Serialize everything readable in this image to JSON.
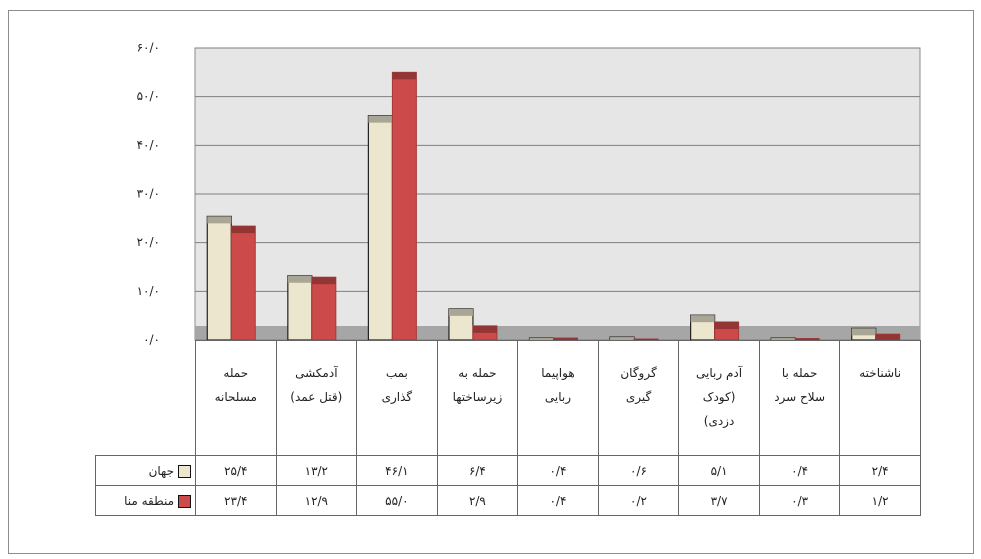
{
  "chart_data": {
    "type": "bar",
    "categories": [
      "حمله\nمسلحانه",
      "آدمکشی\n(قتل عمد)",
      "بمب\nگذاری",
      "حمله به\nزیرساختها",
      "هواپیما\nربایی",
      "گروگان\nگیری",
      "آدم ربایی\n(کودک\nدزدی)",
      "حمله با\nسلاح سرد",
      "ناشناخته"
    ],
    "series": [
      {
        "name": "جهان",
        "color": "#ece6cf",
        "values": [
          25.4,
          13.2,
          46.1,
          6.4,
          0.4,
          0.6,
          5.1,
          0.4,
          2.4
        ],
        "value_labels": [
          "۲۵/۴",
          "۱۳/۲",
          "۴۶/۱",
          "۶/۴",
          "۰/۴",
          "۰/۶",
          "۵/۱",
          "۰/۴",
          "۲/۴"
        ]
      },
      {
        "name": "منطقه منا",
        "color": "#cd4a4a",
        "values": [
          23.4,
          12.9,
          55.0,
          2.9,
          0.4,
          0.2,
          3.7,
          0.3,
          1.2
        ],
        "value_labels": [
          "۲۳/۴",
          "۱۲/۹",
          "۵۵/۰",
          "۲/۹",
          "۰/۴",
          "۰/۲",
          "۳/۷",
          "۰/۳",
          "۱/۲"
        ]
      }
    ],
    "ylim": [
      0,
      60
    ],
    "yticks": [
      {
        "value": 0,
        "label": "۰/۰"
      },
      {
        "value": 10,
        "label": "۱۰/۰"
      },
      {
        "value": 20,
        "label": "۲۰/۰"
      },
      {
        "value": 30,
        "label": "۳۰/۰"
      },
      {
        "value": 40,
        "label": "۴۰/۰"
      },
      {
        "value": 50,
        "label": "۵۰/۰"
      },
      {
        "value": 60,
        "label": "۶۰/۰"
      }
    ],
    "grid": true
  }
}
